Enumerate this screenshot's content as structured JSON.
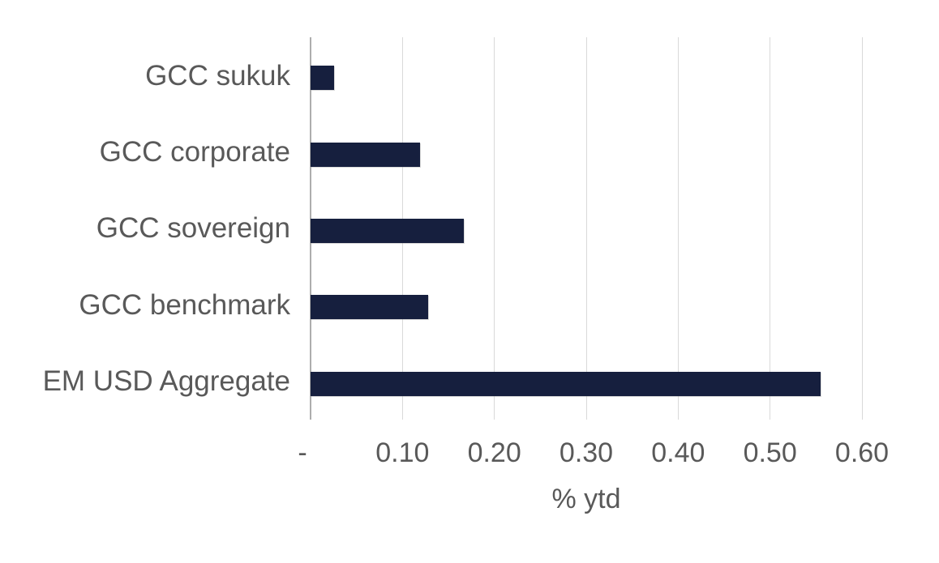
{
  "chart_data": {
    "type": "bar",
    "orientation": "horizontal",
    "title": "",
    "xlabel": "% ytd",
    "ylabel": "",
    "categories": [
      "GCC sukuk",
      "GCC corporate",
      "GCC sovereign",
      "GCC benchmark",
      "EM USD Aggregate"
    ],
    "values": [
      0.026,
      0.119,
      0.167,
      0.128,
      0.555
    ],
    "xlim": [
      0,
      0.6
    ],
    "xticks": [
      {
        "label": "-",
        "value": 0
      },
      {
        "label": "0.10",
        "value": 0.1
      },
      {
        "label": "0.20",
        "value": 0.2
      },
      {
        "label": "0.30",
        "value": 0.3
      },
      {
        "label": "0.40",
        "value": 0.4
      },
      {
        "label": "0.50",
        "value": 0.5
      },
      {
        "label": "0.60",
        "value": 0.6
      }
    ],
    "grid": "vertical-only",
    "legend": "none",
    "colors": {
      "bar": "#161F3E",
      "label_text": "#595959",
      "gridline": "#D9D9D9",
      "axis_line": "#ADADAD",
      "background": "#FFFFFF"
    }
  }
}
